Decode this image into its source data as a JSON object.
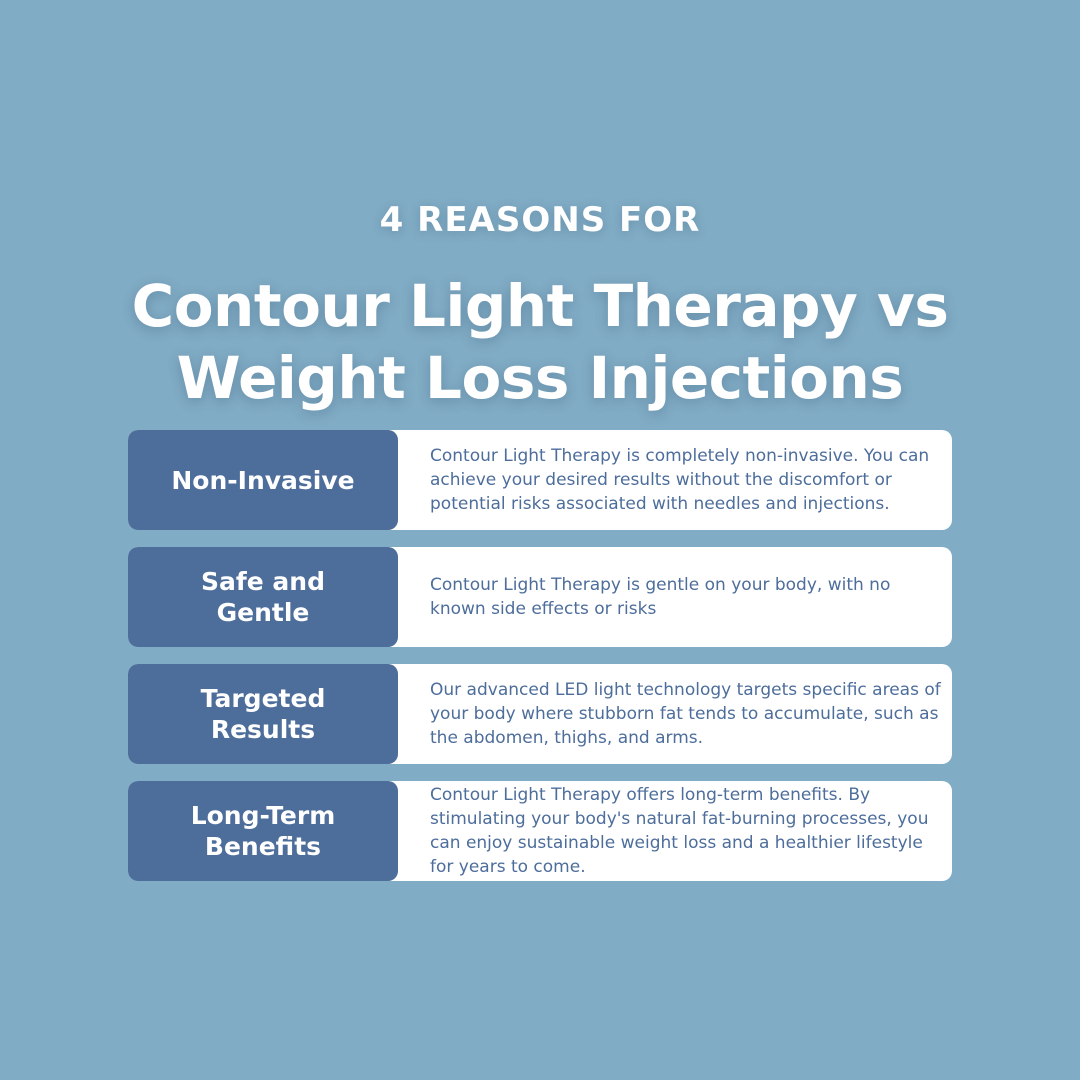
{
  "header": {
    "kicker": "4 REASONS FOR",
    "headline_line1": "Contour Light Therapy vs",
    "headline_line2": "Weight Loss Injections"
  },
  "reasons": [
    {
      "label": "Non-Invasive",
      "text": "Contour Light Therapy is completely non-invasive. You can achieve your desired results without the discomfort or potential risks associated with needles and injections."
    },
    {
      "label": "Safe and Gentle",
      "text": "Contour Light Therapy is gentle on your body, with no known side effects or risks"
    },
    {
      "label": "Targeted Results",
      "text": "Our advanced LED light technology targets specific areas of your body where stubborn fat tends to accumulate, such as the abdomen, thighs, and arms."
    },
    {
      "label": "Long-Term Benefits",
      "text": "Contour Light Therapy offers long-term benefits. By stimulating your body's natural fat-burning processes, you can enjoy sustainable weight loss and a healthier lifestyle for years to come."
    }
  ],
  "colors": {
    "background": "#81acc5",
    "label_fill": "#4d6d9b",
    "text_card": "#ffffff",
    "body_text": "#4d6d9b"
  }
}
